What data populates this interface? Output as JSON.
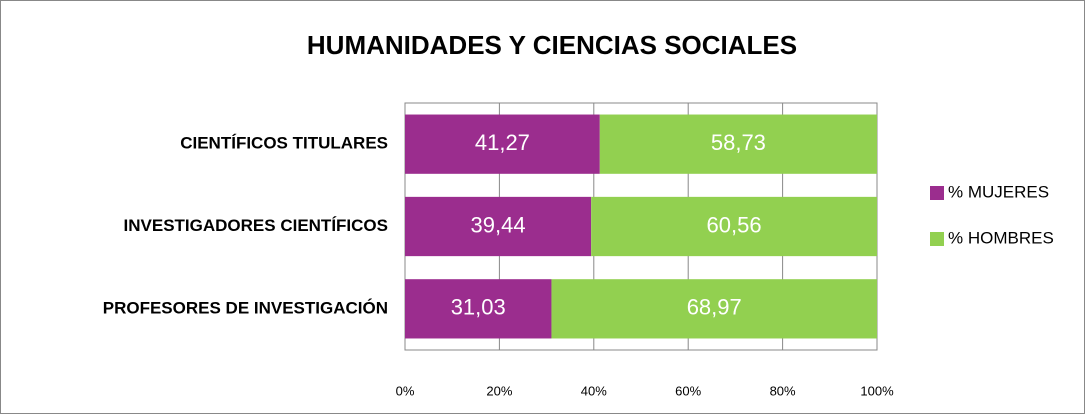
{
  "chart_data": {
    "type": "bar",
    "orientation": "horizontal",
    "stacked": true,
    "title": "HUMANIDADES Y CIENCIAS SOCIALES",
    "categories": [
      "CIENTÍFICOS TITULARES",
      "INVESTIGADORES CIENTÍFICOS",
      "PROFESORES DE INVESTIGACIÓN"
    ],
    "series": [
      {
        "name": "% MUJERES",
        "color": "#9b2d8e",
        "values": [
          41.27,
          39.44,
          31.03
        ],
        "value_labels": [
          "41,27",
          "39,44",
          "31,03"
        ]
      },
      {
        "name": "% HOMBRES",
        "color": "#92d050",
        "values": [
          58.73,
          60.56,
          68.97
        ],
        "value_labels": [
          "58,73",
          "60,56",
          "68,97"
        ]
      }
    ],
    "xlim": [
      0,
      100
    ],
    "xticks": [
      {
        "value": 0,
        "label": "0%"
      },
      {
        "value": 20,
        "label": "20%"
      },
      {
        "value": 40,
        "label": "40%"
      },
      {
        "value": 60,
        "label": "60%"
      },
      {
        "value": 80,
        "label": "80%"
      },
      {
        "value": 100,
        "label": "100%"
      }
    ],
    "grid": true,
    "legend": "right"
  }
}
